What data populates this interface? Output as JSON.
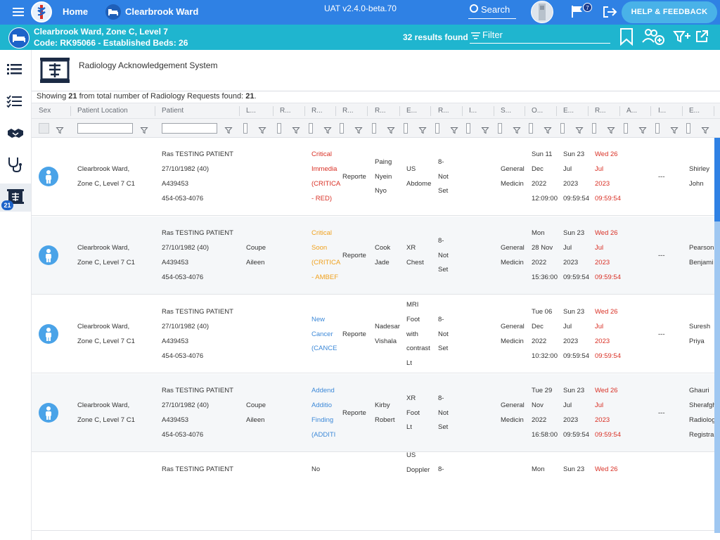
{
  "topbar": {
    "home_label": "Home",
    "ward_label": "Clearbrook Ward",
    "version": "UAT v2.4.0-beta.70",
    "search_label": "Search",
    "notification_count": "7",
    "help_label": "HELP & FEEDBACK",
    "accent_color": "#2f81e4"
  },
  "subbar": {
    "location_line1": "Clearbrook Ward, Zone C, Level 7",
    "location_line2": "Code: RK95066 - Established Beds: 26",
    "results_text": "32 results found",
    "filter_label": "Filter",
    "accent_color": "#1fb5cf"
  },
  "sidenav": {
    "items": [
      {
        "name": "list-icon"
      },
      {
        "name": "checklist-icon"
      },
      {
        "name": "handshake-icon"
      },
      {
        "name": "stethoscope-icon"
      },
      {
        "name": "radiology-icon",
        "badge": "21",
        "active": true
      }
    ]
  },
  "main": {
    "system_title": "Radiology Acknowledgement System",
    "showing_prefix": "Showing ",
    "showing_count": "21",
    "showing_middle": " from total number of Radiology Requests found: ",
    "showing_total": "21",
    "showing_suffix": "."
  },
  "grid": {
    "columns": [
      "Sex",
      "Patient Location",
      "Patient",
      "L...",
      "R...",
      "R...",
      "R...",
      "R...",
      "E...",
      "R...",
      "I...",
      "S...",
      "O...",
      "E...",
      "R...",
      "A...",
      "I...",
      "E..."
    ],
    "rows": [
      {
        "location": [
          "Clearbrook Ward,",
          "Zone C, Level 7 C1"
        ],
        "patient": [
          "Ras TESTING PATIENT",
          "27/10/1982 (40)",
          "A439453",
          "454-053-4076"
        ],
        "l": [],
        "priority": [
          "Critical",
          "Immedia",
          "(CRITICA",
          "- RED)"
        ],
        "priority_color": "red",
        "status": [
          "Reporte"
        ],
        "reporter": [
          "Paing",
          "Nyein",
          "Nyo"
        ],
        "exam": [
          "US",
          "Abdome"
        ],
        "r2": [
          "8-",
          "Not",
          "Set"
        ],
        "specialty": [
          "General",
          "Medicin"
        ],
        "ordered": [
          "Sun 11",
          "Dec",
          "2022",
          "12:09:00"
        ],
        "e2": [
          "Sun 23",
          "Jul",
          "2023",
          "09:59:54"
        ],
        "r3": [
          "Wed 26",
          "Jul",
          "2023",
          "09:59:54"
        ],
        "a": [],
        "i2": [
          "---"
        ],
        "e3": [
          "Shirley",
          "John"
        ]
      },
      {
        "location": [
          "Clearbrook Ward,",
          "Zone C, Level 7 C1"
        ],
        "patient": [
          "Ras TESTING PATIENT",
          "27/10/1982 (40)",
          "A439453",
          "454-053-4076"
        ],
        "l": [
          "Coupe",
          "Aileen"
        ],
        "priority": [
          "Critical",
          "Soon",
          "(CRITICA",
          "- AMBEF"
        ],
        "priority_color": "amber",
        "status": [
          "Reporte"
        ],
        "reporter": [
          "Cook",
          "Jade"
        ],
        "exam": [
          "XR",
          "Chest"
        ],
        "r2": [
          "8-",
          "Not",
          "Set"
        ],
        "specialty": [
          "General",
          "Medicin"
        ],
        "ordered": [
          "Mon",
          "28 Nov",
          "2022",
          "15:36:00"
        ],
        "e2": [
          "Sun 23",
          "Jul",
          "2023",
          "09:59:54"
        ],
        "r3": [
          "Wed 26",
          "Jul",
          "2023",
          "09:59:54"
        ],
        "a": [],
        "i2": [
          "---"
        ],
        "e3": [
          "Pearson",
          "Benjami"
        ]
      },
      {
        "location": [
          "Clearbrook Ward,",
          "Zone C, Level 7 C1"
        ],
        "patient": [
          "Ras TESTING PATIENT",
          "27/10/1982 (40)",
          "A439453",
          "454-053-4076"
        ],
        "l": [],
        "priority": [
          "New",
          "Cancer",
          "(CANCE"
        ],
        "priority_color": "blue",
        "status": [
          "Reporte"
        ],
        "reporter": [
          "Nadesar",
          "Vishala"
        ],
        "exam": [
          "MRI",
          "Foot",
          "with",
          "contrast",
          "Lt"
        ],
        "r2": [
          "8-",
          "Not",
          "Set"
        ],
        "specialty": [
          "General",
          "Medicin"
        ],
        "ordered": [
          "Tue 06",
          "Dec",
          "2022",
          "10:32:00"
        ],
        "e2": [
          "Sun 23",
          "Jul",
          "2023",
          "09:59:54"
        ],
        "r3": [
          "Wed 26",
          "Jul",
          "2023",
          "09:59:54"
        ],
        "a": [],
        "i2": [
          "---"
        ],
        "e3": [
          "Suresh",
          "Priya"
        ]
      },
      {
        "location": [
          "Clearbrook Ward,",
          "Zone C, Level 7 C1"
        ],
        "patient": [
          "Ras TESTING PATIENT",
          "27/10/1982 (40)",
          "A439453",
          "454-053-4076"
        ],
        "l": [
          "Coupe",
          "Aileen"
        ],
        "priority": [
          "Addend",
          "Additio",
          "Finding",
          "(ADDITI"
        ],
        "priority_color": "blue",
        "status": [
          "Reporte"
        ],
        "reporter": [
          "Kirby",
          "Robert"
        ],
        "exam": [
          "XR",
          "Foot",
          "Lt"
        ],
        "r2": [
          "8-",
          "Not",
          "Set"
        ],
        "specialty": [
          "General",
          "Medicin"
        ],
        "ordered": [
          "Tue 29",
          "Nov",
          "2022",
          "16:58:00"
        ],
        "e2": [
          "Sun 23",
          "Jul",
          "2023",
          "09:59:54"
        ],
        "r3": [
          "Wed 26",
          "Jul",
          "2023",
          "09:59:54"
        ],
        "a": [],
        "i2": [
          "---"
        ],
        "e3": [
          "Ghauri",
          "Sherafgh",
          "Radiolog",
          "Registra"
        ]
      },
      {
        "location": [],
        "patient": [
          "Ras TESTING PATIENT"
        ],
        "l": [],
        "priority": [
          "No"
        ],
        "priority_color": "default",
        "status": [],
        "reporter": [],
        "exam": [
          "US",
          "Doppler"
        ],
        "r2": [
          "8-"
        ],
        "specialty": [],
        "ordered": [
          "Mon"
        ],
        "e2": [
          "Sun 23"
        ],
        "r3": [
          "Wed 26"
        ],
        "a": [],
        "i2": [],
        "e3": []
      }
    ]
  }
}
